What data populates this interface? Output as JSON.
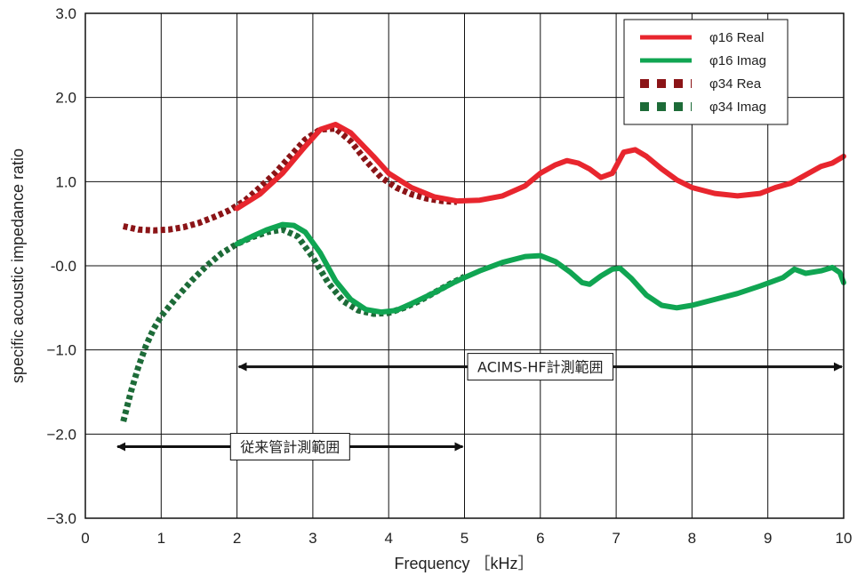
{
  "chart_data": {
    "type": "line",
    "xlabel": "Frequency ［kHz］",
    "ylabel": "specific acoustic impedance ratio",
    "xlim": [
      0,
      10
    ],
    "ylim": [
      -3,
      3
    ],
    "x_ticks": [
      0,
      1,
      2,
      3,
      4,
      5,
      6,
      7,
      8,
      9,
      10
    ],
    "x_tick_labels": [
      "0",
      "1",
      "2",
      "3",
      "4",
      "5",
      "6",
      "7",
      "8",
      "9",
      "10"
    ],
    "y_ticks": [
      3,
      2,
      1,
      0,
      -1,
      -2,
      -3
    ],
    "y_tick_labels": [
      "3.0",
      "2.0",
      "1.0",
      "-0.0",
      "−1.0",
      "−2.0",
      "−3.0"
    ],
    "grid": true,
    "legend_position": "top-right",
    "series": [
      {
        "name": "φ16 Real",
        "color": "#e8262e",
        "style": "solid",
        "x": [
          2.0,
          2.3,
          2.6,
          2.9,
          3.1,
          3.3,
          3.5,
          3.8,
          4.0,
          4.3,
          4.6,
          4.9,
          5.2,
          5.5,
          5.8,
          6.0,
          6.2,
          6.35,
          6.5,
          6.65,
          6.8,
          6.95,
          7.1,
          7.25,
          7.4,
          7.6,
          7.8,
          8.0,
          8.3,
          8.6,
          8.9,
          9.1,
          9.3,
          9.5,
          9.7,
          9.85,
          10.0
        ],
        "y": [
          0.68,
          0.85,
          1.1,
          1.42,
          1.62,
          1.68,
          1.58,
          1.3,
          1.1,
          0.93,
          0.82,
          0.77,
          0.78,
          0.83,
          0.95,
          1.1,
          1.2,
          1.25,
          1.22,
          1.15,
          1.05,
          1.1,
          1.35,
          1.38,
          1.3,
          1.15,
          1.02,
          0.93,
          0.86,
          0.83,
          0.86,
          0.93,
          0.98,
          1.08,
          1.18,
          1.22,
          1.3
        ]
      },
      {
        "name": "φ16 Imag",
        "color": "#10a552",
        "style": "solid",
        "x": [
          2.0,
          2.2,
          2.4,
          2.6,
          2.75,
          2.9,
          3.1,
          3.3,
          3.5,
          3.7,
          3.9,
          4.1,
          4.3,
          4.6,
          4.9,
          5.2,
          5.5,
          5.8,
          6.0,
          6.2,
          6.4,
          6.55,
          6.65,
          6.8,
          6.95,
          7.05,
          7.2,
          7.4,
          7.6,
          7.8,
          8.0,
          8.3,
          8.6,
          8.9,
          9.2,
          9.35,
          9.5,
          9.7,
          9.85,
          9.95,
          10.0
        ],
        "y": [
          0.26,
          0.35,
          0.43,
          0.49,
          0.48,
          0.4,
          0.15,
          -0.18,
          -0.4,
          -0.52,
          -0.55,
          -0.53,
          -0.45,
          -0.32,
          -0.18,
          -0.06,
          0.04,
          0.11,
          0.12,
          0.05,
          -0.08,
          -0.2,
          -0.22,
          -0.12,
          -0.04,
          -0.03,
          -0.15,
          -0.35,
          -0.47,
          -0.5,
          -0.47,
          -0.4,
          -0.33,
          -0.24,
          -0.14,
          -0.04,
          -0.09,
          -0.06,
          -0.02,
          -0.08,
          -0.2
        ]
      },
      {
        "name": "φ34 Rea",
        "color": "#8b1417",
        "style": "dotted",
        "x": [
          0.5,
          0.7,
          0.9,
          1.1,
          1.3,
          1.5,
          1.7,
          1.9,
          2.1,
          2.3,
          2.5,
          2.7,
          2.9,
          3.1,
          3.3,
          3.5,
          3.7,
          3.9,
          4.1,
          4.3,
          4.5,
          4.7,
          4.9
        ],
        "y": [
          0.47,
          0.43,
          0.42,
          0.43,
          0.46,
          0.51,
          0.58,
          0.66,
          0.77,
          0.93,
          1.1,
          1.3,
          1.5,
          1.62,
          1.63,
          1.48,
          1.25,
          1.05,
          0.93,
          0.85,
          0.8,
          0.77,
          0.76
        ]
      },
      {
        "name": "φ34 Imag",
        "color": "#1d6b38",
        "style": "dotted",
        "x": [
          0.5,
          0.6,
          0.7,
          0.8,
          0.9,
          1.0,
          1.2,
          1.4,
          1.6,
          1.8,
          2.0,
          2.2,
          2.4,
          2.6,
          2.8,
          3.0,
          3.2,
          3.4,
          3.6,
          3.8,
          4.0,
          4.2,
          4.4,
          4.6,
          4.8,
          5.0
        ],
        "y": [
          -1.85,
          -1.5,
          -1.2,
          -0.95,
          -0.75,
          -0.6,
          -0.38,
          -0.18,
          0.0,
          0.15,
          0.26,
          0.34,
          0.4,
          0.43,
          0.35,
          0.1,
          -0.2,
          -0.42,
          -0.53,
          -0.57,
          -0.56,
          -0.5,
          -0.42,
          -0.32,
          -0.22,
          -0.13
        ]
      }
    ],
    "annotations": [
      {
        "text": "ACIMS-HF計測範囲",
        "x_start": 2.0,
        "x_end": 10.0,
        "y": -1.2
      },
      {
        "text": "従来管計測範囲",
        "x_start": 0.4,
        "x_end": 5.0,
        "y": -2.15
      }
    ]
  }
}
